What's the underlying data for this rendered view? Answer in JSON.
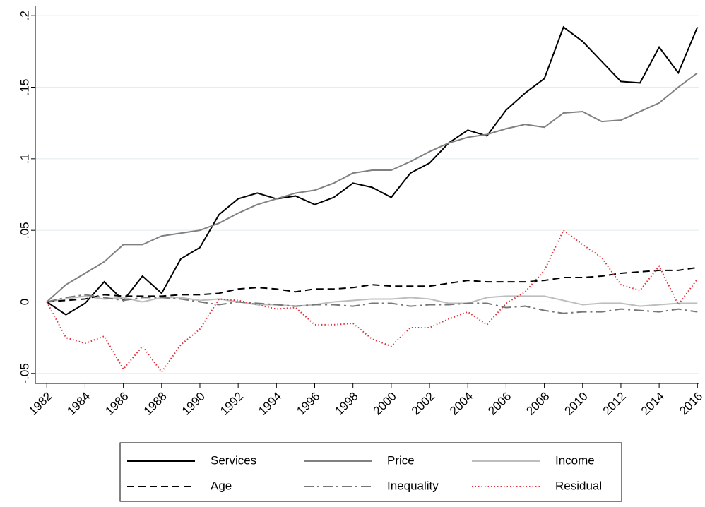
{
  "chart_data": {
    "type": "line",
    "x": [
      1982,
      1983,
      1984,
      1985,
      1986,
      1987,
      1988,
      1989,
      1990,
      1991,
      1992,
      1993,
      1994,
      1995,
      1996,
      1997,
      1998,
      1999,
      2000,
      2001,
      2002,
      2003,
      2004,
      2005,
      2006,
      2007,
      2008,
      2009,
      2010,
      2011,
      2012,
      2013,
      2014,
      2015,
      2016
    ],
    "series": [
      {
        "name": "Services",
        "color": "#000000",
        "dash": "solid",
        "values": [
          0,
          -0.009,
          -0.001,
          0.014,
          0.001,
          0.018,
          0.006,
          0.03,
          0.038,
          0.061,
          0.072,
          0.076,
          0.072,
          0.074,
          0.068,
          0.073,
          0.083,
          0.08,
          0.073,
          0.09,
          0.097,
          0.111,
          0.12,
          0.116,
          0.134,
          0.146,
          0.156,
          0.192,
          0.182,
          0.168,
          0.154,
          0.153,
          0.178,
          0.16,
          0.192
        ]
      },
      {
        "name": "Price",
        "color": "#808080",
        "dash": "solid",
        "values": [
          0,
          0.012,
          0.02,
          0.028,
          0.04,
          0.04,
          0.046,
          0.048,
          0.05,
          0.055,
          0.062,
          0.068,
          0.072,
          0.076,
          0.078,
          0.083,
          0.09,
          0.092,
          0.092,
          0.098,
          0.105,
          0.111,
          0.115,
          0.117,
          0.121,
          0.124,
          0.122,
          0.132,
          0.133,
          0.126,
          0.127,
          0.133,
          0.139,
          0.15,
          0.16
        ]
      },
      {
        "name": "Income",
        "color": "#bdbdbd",
        "dash": "solid",
        "values": [
          0,
          0.002,
          0.004,
          0.002,
          0.003,
          0.0,
          0.003,
          0.003,
          0.001,
          0.002,
          0.0,
          -0.002,
          -0.002,
          -0.003,
          -0.002,
          0.0,
          0.001,
          0.002,
          0.002,
          0.003,
          0.002,
          -0.001,
          -0.001,
          0.003,
          0.004,
          0.004,
          0.004,
          0.001,
          -0.002,
          -0.001,
          -0.001,
          -0.003,
          -0.002,
          -0.001,
          -0.001
        ]
      },
      {
        "name": "Age",
        "color": "#000000",
        "dash": "dashed",
        "values": [
          0,
          0.001,
          0.002,
          0.005,
          0.004,
          0.004,
          0.004,
          0.005,
          0.005,
          0.006,
          0.009,
          0.01,
          0.009,
          0.007,
          0.009,
          0.009,
          0.01,
          0.012,
          0.011,
          0.011,
          0.011,
          0.013,
          0.015,
          0.014,
          0.014,
          0.014,
          0.015,
          0.017,
          0.017,
          0.018,
          0.02,
          0.021,
          0.022,
          0.022,
          0.024
        ]
      },
      {
        "name": "Inequality",
        "color": "#777777",
        "dash": "dashdot",
        "values": [
          0,
          0.003,
          0.005,
          0.003,
          0.001,
          0.003,
          0.003,
          0.002,
          0.0,
          -0.002,
          0.0,
          -0.001,
          -0.002,
          -0.003,
          -0.002,
          -0.002,
          -0.003,
          -0.001,
          -0.001,
          -0.003,
          -0.002,
          -0.002,
          -0.001,
          -0.001,
          -0.004,
          -0.003,
          -0.006,
          -0.008,
          -0.007,
          -0.007,
          -0.005,
          -0.006,
          -0.007,
          -0.005,
          -0.007
        ]
      },
      {
        "name": "Residual",
        "color": "#e0303a",
        "dash": "dotted",
        "values": [
          0,
          -0.025,
          -0.029,
          -0.024,
          -0.047,
          -0.031,
          -0.049,
          -0.03,
          -0.019,
          0.002,
          0.001,
          -0.002,
          -0.005,
          -0.004,
          -0.016,
          -0.016,
          -0.015,
          -0.026,
          -0.031,
          -0.018,
          -0.018,
          -0.012,
          -0.007,
          -0.016,
          -0.001,
          0.007,
          0.022,
          0.05,
          0.04,
          0.031,
          0.012,
          0.008,
          0.025,
          -0.002,
          0.016
        ]
      }
    ],
    "xlim": [
      1981.4,
      2016.1
    ],
    "xticks": [
      1982,
      1984,
      1986,
      1988,
      1990,
      1992,
      1994,
      1996,
      1998,
      2000,
      2002,
      2004,
      2006,
      2008,
      2010,
      2012,
      2014,
      2016
    ],
    "ylim": [
      -0.057,
      0.207
    ],
    "yticks": [
      {
        "value": -0.05,
        "label": "-.05"
      },
      0,
      {
        "value": 0.05,
        "label": ".05"
      },
      {
        "value": 0.1,
        "label": ".1"
      },
      {
        "value": 0.15,
        "label": ".15"
      },
      {
        "value": 0.2,
        "label": ".2"
      }
    ],
    "grid": true
  }
}
